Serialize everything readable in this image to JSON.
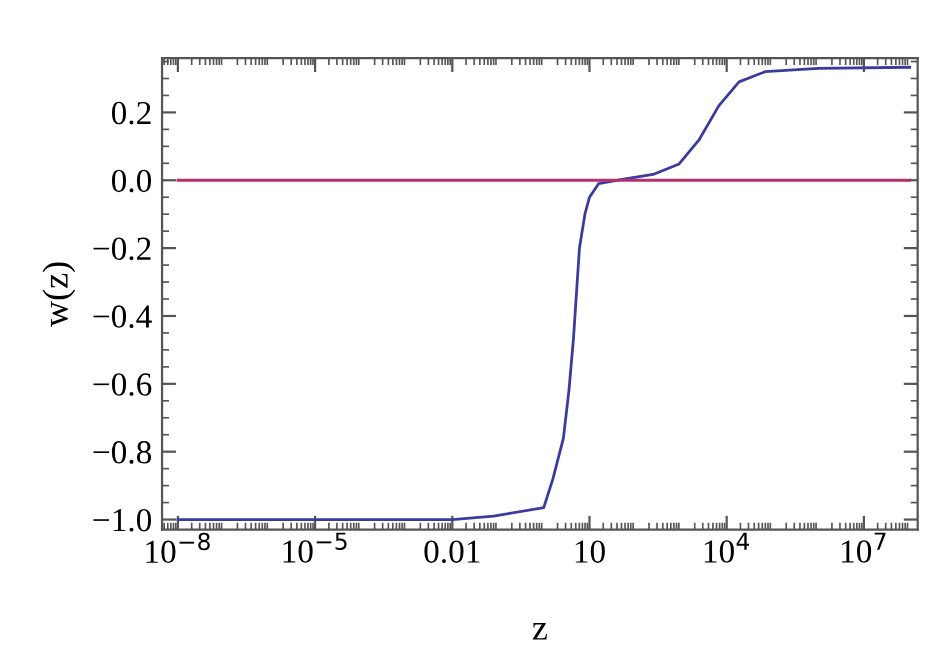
{
  "chart_data": {
    "type": "line",
    "xlabel": "z",
    "ylabel": "w(z)",
    "log": "x",
    "xlim": [
      4.5e-09,
      150000000.0
    ],
    "ylim": [
      -1.03,
      0.36
    ],
    "xticks": [
      {
        "value": 1e-08,
        "label": "10$^{−8}$"
      },
      {
        "value": 1e-05,
        "label": "10$^{−5}$"
      },
      0.01,
      10,
      {
        "value": 10000,
        "label": "10$^{4}$"
      },
      {
        "value": 10000000,
        "label": "10$^{7}$"
      }
    ],
    "yticks": [
      {
        "value": -1.0,
        "label": "−1.0"
      },
      {
        "value": -0.8,
        "label": "−0.8"
      },
      {
        "value": -0.6,
        "label": "−0.6"
      },
      {
        "value": -0.4,
        "label": "−0.4"
      },
      {
        "value": -0.2,
        "label": "−0.2"
      },
      {
        "value": 0.0,
        "label": "0.0"
      },
      {
        "value": 0.2,
        "label": "0.2"
      }
    ],
    "grid": false,
    "marker": "none",
    "line_style": "solid",
    "series": [
      {
        "color": "#3b3b9e",
        "x": [
          1e-08,
          1e-05,
          0.01,
          0.0794,
          1,
          1.585,
          2.69,
          3.55,
          4.47,
          6.03,
          7.94,
          10,
          15.8,
          60.3,
          245,
          912,
          2512,
          6761,
          18621,
          69183,
          1000000,
          100000000
        ],
        "values": [
          -1.0,
          -1.0,
          -1.0,
          -0.99,
          -0.965,
          -0.88,
          -0.76,
          -0.62,
          -0.465,
          -0.2,
          -0.1,
          -0.05,
          -0.01,
          0.004,
          0.017,
          0.048,
          0.12,
          0.22,
          0.29,
          0.32,
          0.33,
          0.333
        ]
      },
      {
        "color": "#b03070",
        "x": [
          1e-08,
          100000000
        ],
        "values": [
          0,
          0
        ]
      }
    ]
  }
}
